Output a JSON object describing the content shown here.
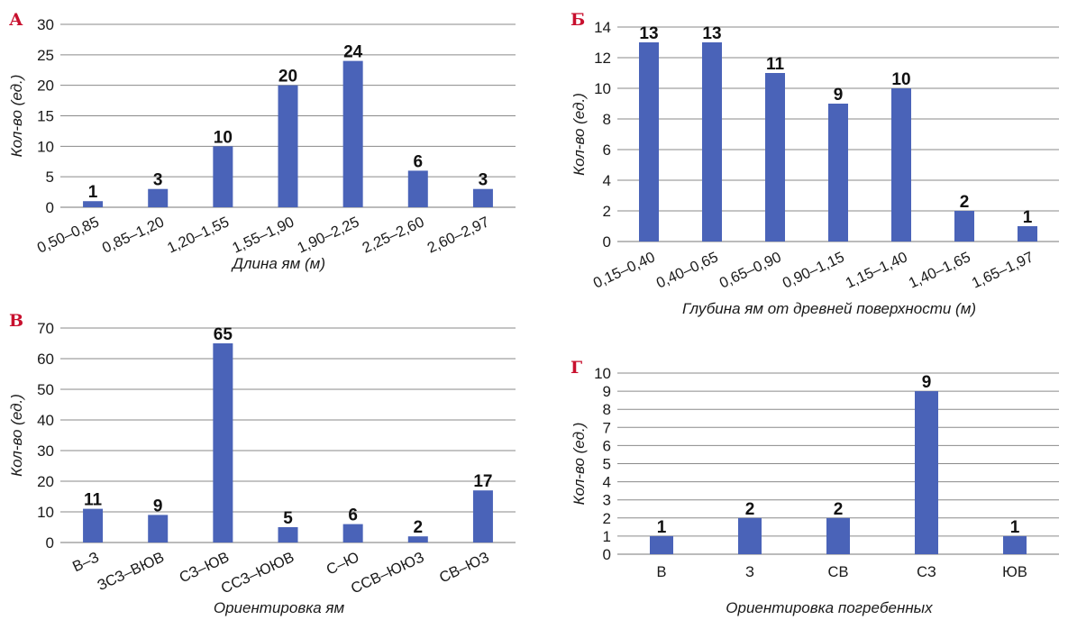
{
  "colors": {
    "bar": "#4a63b8",
    "panel_letter": "#c8102e",
    "grid": "#8a8a8a",
    "text": "#1a1a1a"
  },
  "chart_data": [
    {
      "type": "bar",
      "panel": "А",
      "categories": [
        "0,50–0,85",
        "0,85–1,20",
        "1,20–1,55",
        "1,55–1,90",
        "1,90–2,25",
        "2,25–2,60",
        "2,60–2,97"
      ],
      "values": [
        1,
        3,
        10,
        20,
        24,
        6,
        3
      ],
      "xlabel": "Длина ям (м)",
      "ylabel": "Кол-во (ед.)",
      "ylim": [
        0,
        30
      ],
      "yticks": [
        0,
        5,
        10,
        15,
        20,
        25,
        30
      ],
      "grid": true,
      "rotated_x_labels": true
    },
    {
      "type": "bar",
      "panel": "Б",
      "categories": [
        "0,15–0,40",
        "0,40–0,65",
        "0,65–0,90",
        "0,90–1,15",
        "1,15–1,40",
        "1,40–1,65",
        "1,65–1,97"
      ],
      "values": [
        13,
        13,
        11,
        9,
        10,
        2,
        1
      ],
      "xlabel": "Глубина ям от  древней поверхности (м)",
      "ylabel": "Кол-во (ед.)",
      "ylim": [
        0,
        14
      ],
      "yticks": [
        0,
        2,
        4,
        6,
        8,
        10,
        12,
        14
      ],
      "grid": true,
      "rotated_x_labels": true
    },
    {
      "type": "bar",
      "panel": "В",
      "categories": [
        "В–З",
        "ЗСЗ–ВЮВ",
        "СЗ–ЮВ",
        "ССЗ–ЮЮВ",
        "С–Ю",
        "ССВ–ЮЮЗ",
        "СВ–ЮЗ"
      ],
      "values": [
        11,
        9,
        65,
        5,
        6,
        2,
        17
      ],
      "xlabel": "Ориентировка ям",
      "ylabel": "Кол-во (ед.)",
      "ylim": [
        0,
        70
      ],
      "yticks": [
        0,
        10,
        20,
        30,
        40,
        50,
        60,
        70
      ],
      "grid": true,
      "rotated_x_labels": true
    },
    {
      "type": "bar",
      "panel": "Г",
      "categories": [
        "В",
        "З",
        "СВ",
        "СЗ",
        "ЮВ"
      ],
      "values": [
        1,
        2,
        2,
        9,
        1
      ],
      "xlabel": "Ориентировка погребенных",
      "ylabel": "Кол-во (ед.)",
      "ylim": [
        0,
        10
      ],
      "yticks": [
        0,
        1,
        2,
        3,
        4,
        5,
        6,
        7,
        8,
        9,
        10
      ],
      "grid": true,
      "rotated_x_labels": false
    }
  ]
}
